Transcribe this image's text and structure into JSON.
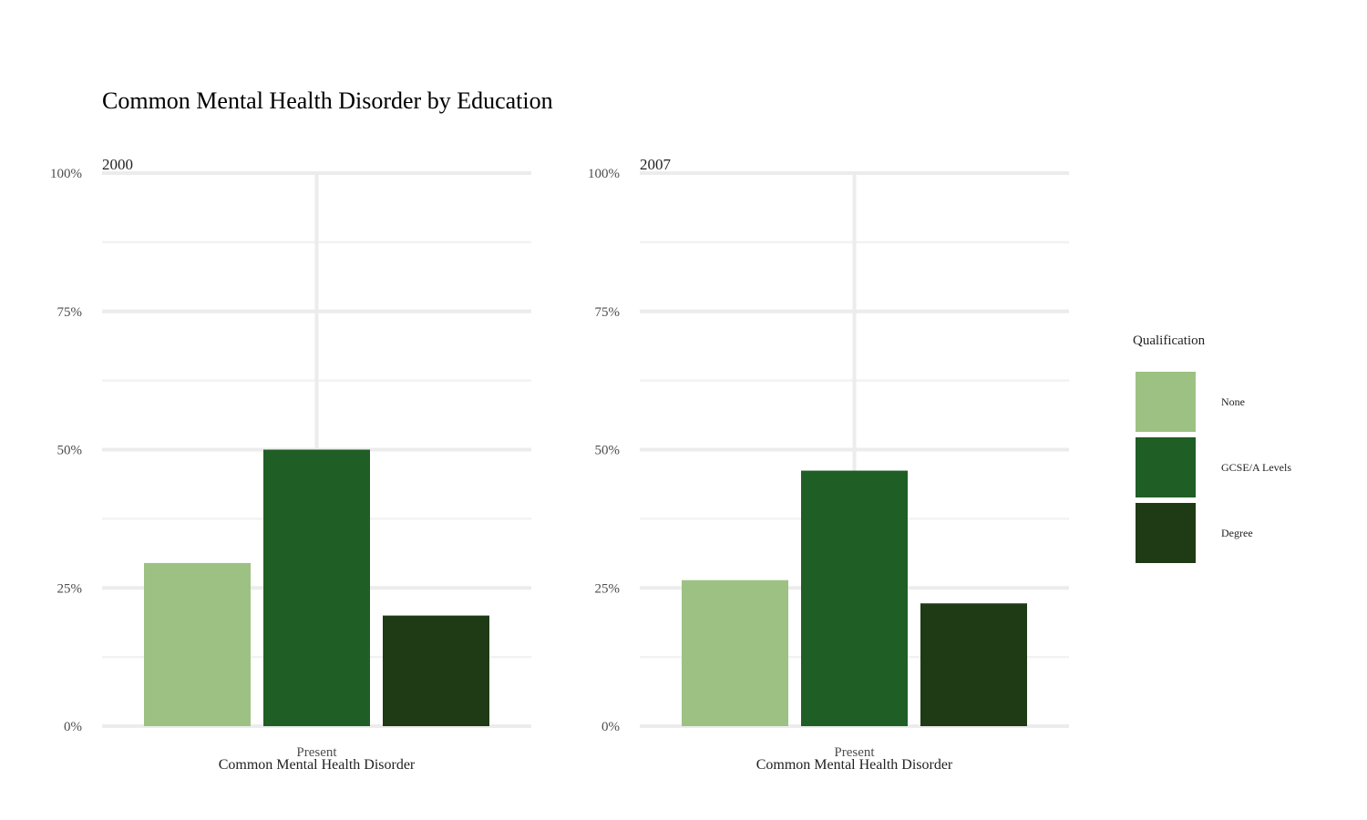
{
  "title": "Common Mental Health Disorder by Education",
  "colors": {
    "None": "#9dc183",
    "GCSE/A Levels": "#1f5e25",
    "Degree": "#1e3b15"
  },
  "legend": {
    "title": "Qualification",
    "entries": [
      "None",
      "GCSE/A Levels",
      "Degree"
    ]
  },
  "chart_data": [
    {
      "type": "bar",
      "panel": "2000",
      "categories": [
        "Present"
      ],
      "xlabel": "Common Mental Health Disorder",
      "ylabel": "",
      "ylim": [
        0,
        1
      ],
      "yticks": [
        "0%",
        "25%",
        "50%",
        "75%",
        "100%"
      ],
      "series": [
        {
          "name": "None",
          "values": [
            0.295
          ]
        },
        {
          "name": "GCSE/A Levels",
          "values": [
            0.5
          ]
        },
        {
          "name": "Degree",
          "values": [
            0.2
          ]
        }
      ]
    },
    {
      "type": "bar",
      "panel": "2007",
      "categories": [
        "Present"
      ],
      "xlabel": "Common Mental Health Disorder",
      "ylabel": "",
      "ylim": [
        0,
        1
      ],
      "yticks": [
        "0%",
        "25%",
        "50%",
        "75%",
        "100%"
      ],
      "series": [
        {
          "name": "None",
          "values": [
            0.264
          ]
        },
        {
          "name": "GCSE/A Levels",
          "values": [
            0.462
          ]
        },
        {
          "name": "Degree",
          "values": [
            0.222
          ]
        }
      ]
    }
  ]
}
